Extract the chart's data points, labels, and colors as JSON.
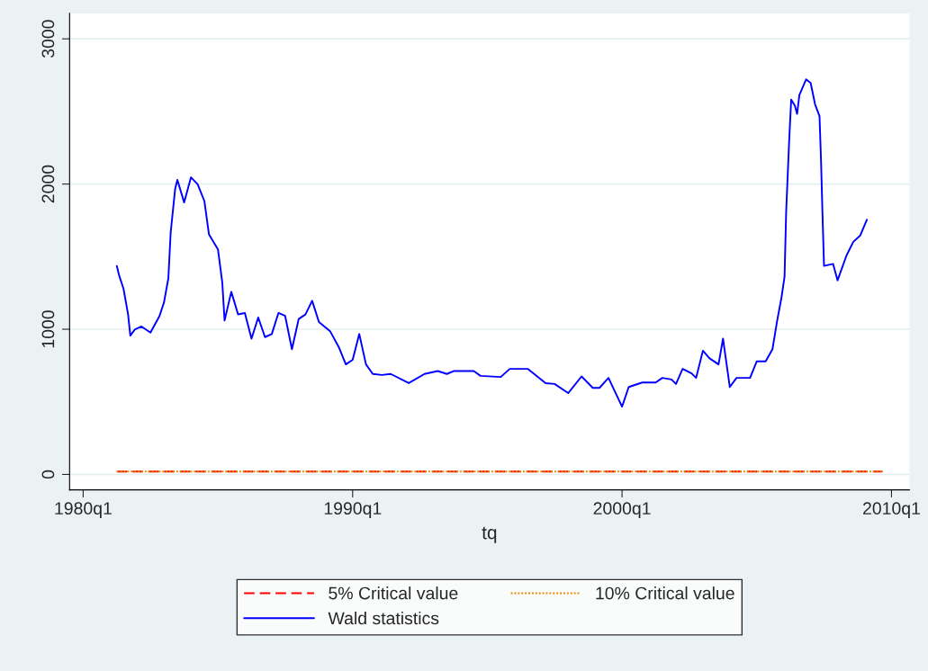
{
  "chart_data": {
    "type": "line",
    "xlabel": "tq",
    "xlim": [
      "1979-07",
      "2010-09"
    ],
    "ylim": [
      -106,
      3175
    ],
    "xticks": [
      {
        "value": "1980-01",
        "label": "1980q1"
      },
      {
        "value": "1990-01",
        "label": "1990q1"
      },
      {
        "value": "2000-01",
        "label": "2000q1"
      },
      {
        "value": "2010-01",
        "label": "2010q1"
      }
    ],
    "yticks": [
      0,
      1000,
      2000,
      3000
    ],
    "grid": "y",
    "legend": "bottom",
    "series": [
      {
        "name": "5% Critical value",
        "color": "#ff0000",
        "line_style": "dashed",
        "x": [
          "1981-04",
          "2009-09"
        ],
        "values": [
          20,
          20
        ]
      },
      {
        "name": "10% Critical value",
        "color": "#e08a00",
        "line_style": "dotted",
        "x": [
          "1981-04",
          "2009-09"
        ],
        "values": [
          20,
          20
        ]
      },
      {
        "name": "Wald statistics",
        "color": "#0000ff",
        "line_style": "solid",
        "x": [
          "1981-04",
          "1981-05",
          "1981-07",
          "1981-09",
          "1981-10",
          "1981-12",
          "1982-03",
          "1982-07",
          "1982-11",
          "1983-01",
          "1983-03",
          "1983-04",
          "1983-06",
          "1983-07",
          "1983-10",
          "1984-01",
          "1984-04",
          "1984-07",
          "1984-09",
          "1985-01",
          "1985-03",
          "1985-04",
          "1985-07",
          "1985-10",
          "1986-01",
          "1986-04",
          "1986-07",
          "1986-10",
          "1987-01",
          "1987-04",
          "1987-07",
          "1987-10",
          "1988-01",
          "1988-04",
          "1988-07",
          "1988-10",
          "1989-03",
          "1989-07",
          "1989-10",
          "1990-01",
          "1990-04",
          "1990-07",
          "1990-10",
          "1991-02",
          "1991-06",
          "1992-02",
          "1992-09",
          "1993-03",
          "1993-07",
          "1993-10",
          "1994-07",
          "1994-10",
          "1995-07",
          "1995-11",
          "1996-07",
          "1997-03",
          "1997-07",
          "1998-01",
          "1998-07",
          "1998-12",
          "1999-03",
          "1999-07",
          "2000-01",
          "2000-04",
          "2000-10",
          "2001-04",
          "2001-07",
          "2001-11",
          "2002-01",
          "2002-04",
          "2002-08",
          "2002-10",
          "2003-01",
          "2003-04",
          "2003-08",
          "2003-10",
          "2004-01",
          "2004-04",
          "2004-10",
          "2005-01",
          "2005-05",
          "2005-08",
          "2005-10",
          "2005-12",
          "2006-01-12",
          "2006-02-03",
          "2006-03-14",
          "2006-04-12",
          "2006-06",
          "2006-07",
          "2006-08",
          "2006-11",
          "2007-01",
          "2007-03",
          "2007-05-01",
          "2007-05-22",
          "2007-06-10",
          "2007-07-01",
          "2007-11",
          "2008-01",
          "2008-05",
          "2008-08",
          "2008-11",
          "2009-02"
        ],
        "values": [
          1436,
          1373,
          1279,
          1102,
          956,
          998,
          1019,
          977,
          1092,
          1185,
          1352,
          1665,
          1967,
          2029,
          1873,
          2046,
          1998,
          1883,
          1654,
          1550,
          1321,
          1060,
          1258,
          1102,
          1112,
          935,
          1081,
          946,
          967,
          1112,
          1092,
          862,
          1071,
          1102,
          1196,
          1050,
          987,
          873,
          758,
          790,
          967,
          758,
          692,
          685,
          692,
          629,
          692,
          712,
          692,
          712,
          712,
          679,
          671,
          727,
          727,
          629,
          623,
          560,
          675,
          596,
          596,
          665,
          467,
          602,
          633,
          633,
          665,
          654,
          623,
          727,
          696,
          665,
          852,
          800,
          758,
          935,
          602,
          665,
          665,
          779,
          779,
          862,
          1050,
          1217,
          1362,
          1810,
          2279,
          2581,
          2540,
          2483,
          2613,
          2721,
          2696,
          2550,
          2467,
          2154,
          1800,
          1436,
          1450,
          1337,
          1508,
          1602,
          1644,
          1754
        ]
      }
    ]
  }
}
